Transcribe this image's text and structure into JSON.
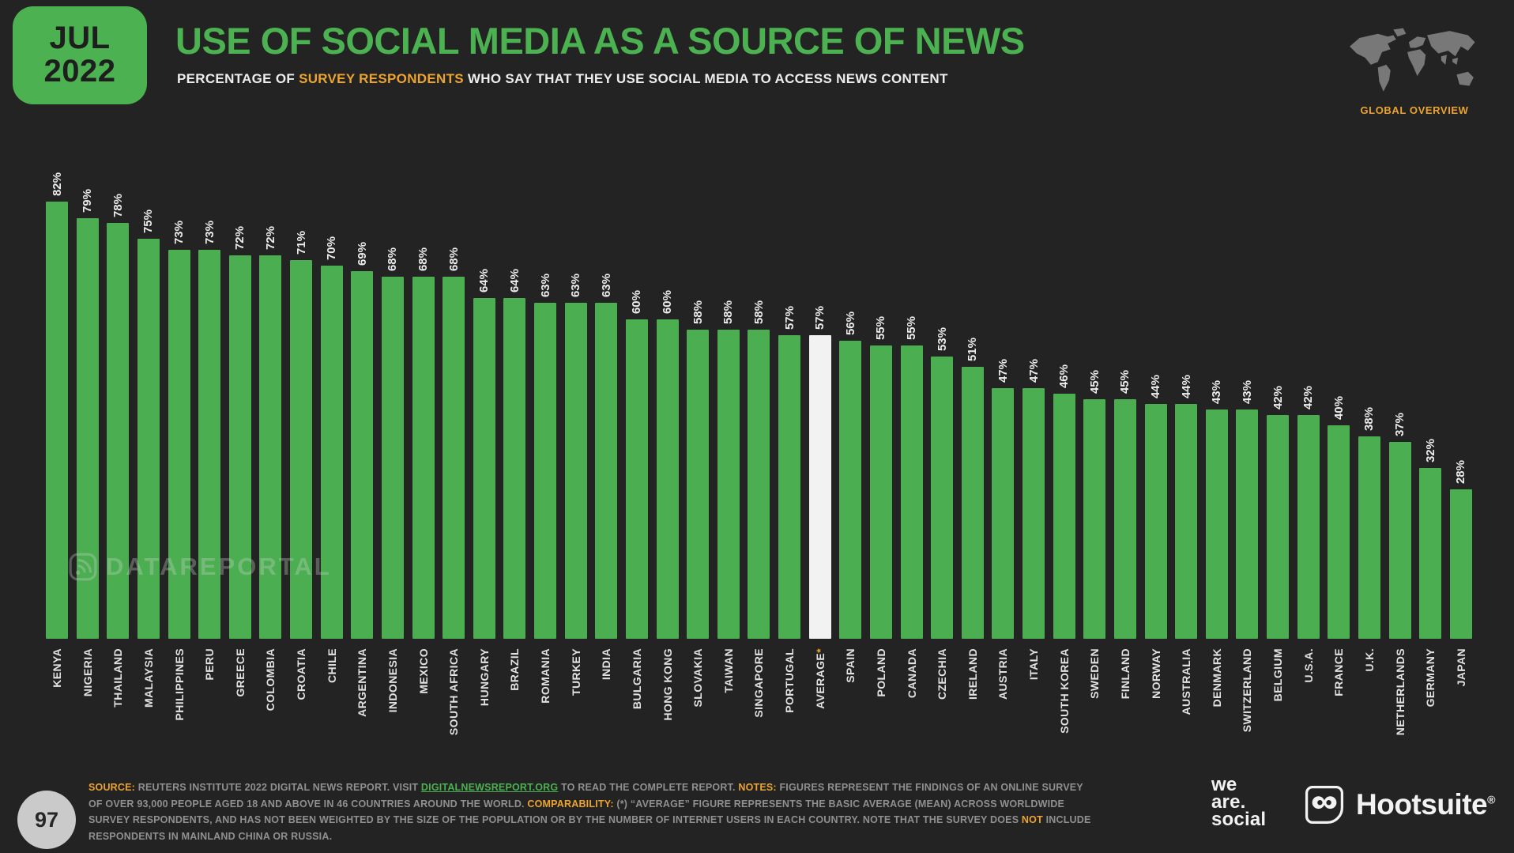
{
  "header": {
    "date_month": "JUL",
    "date_year": "2022",
    "title": "USE OF SOCIAL MEDIA AS A SOURCE OF NEWS",
    "subtitle_prefix": "PERCENTAGE OF ",
    "subtitle_highlight": "SURVEY RESPONDENTS",
    "subtitle_suffix": " WHO SAY THAT THEY USE SOCIAL MEDIA TO ACCESS NEWS CONTENT",
    "region_label": "GLOBAL OVERVIEW"
  },
  "chart_data": {
    "type": "bar",
    "title": "USE OF SOCIAL MEDIA AS A SOURCE OF NEWS",
    "unit": "%",
    "categories": [
      "KENYA",
      "NIGERIA",
      "THAILAND",
      "MALAYSIA",
      "PHILIPPINES",
      "PERU",
      "GREECE",
      "COLOMBIA",
      "CROATIA",
      "CHILE",
      "ARGENTINA",
      "INDONESIA",
      "MEXICO",
      "SOUTH AFRICA",
      "HUNGARY",
      "BRAZIL",
      "ROMANIA",
      "TURKEY",
      "INDIA",
      "BULGARIA",
      "HONG KONG",
      "SLOVAKIA",
      "TAIWAN",
      "SINGAPORE",
      "PORTUGAL",
      "AVERAGE",
      "SPAIN",
      "POLAND",
      "CANADA",
      "CZECHIA",
      "IRELAND",
      "AUSTRIA",
      "ITALY",
      "SOUTH KOREA",
      "SWEDEN",
      "FINLAND",
      "NORWAY",
      "AUSTRALIA",
      "DENMARK",
      "SWITZERLAND",
      "BELGIUM",
      "U.S.A.",
      "FRANCE",
      "U.K.",
      "NETHERLANDS",
      "GERMANY",
      "JAPAN"
    ],
    "values": [
      82,
      79,
      78,
      75,
      73,
      73,
      72,
      72,
      71,
      70,
      69,
      68,
      68,
      68,
      64,
      64,
      63,
      63,
      63,
      60,
      60,
      58,
      58,
      58,
      57,
      57,
      56,
      55,
      55,
      53,
      51,
      47,
      47,
      46,
      45,
      45,
      44,
      44,
      43,
      43,
      42,
      42,
      40,
      38,
      37,
      32,
      28
    ],
    "average_index": 25,
    "average_suffix": "*",
    "value_labels_rotated": true,
    "axis": "none",
    "ylim": [
      0,
      88
    ],
    "bar_color": "#4BAE50",
    "highlight_color": "#F2F2F2"
  },
  "watermark": {
    "text": "DATAREPORTAL"
  },
  "footer": {
    "page_number": "97",
    "note_segments": [
      {
        "text": "SOURCE:",
        "style": "accent"
      },
      {
        "text": " REUTERS INSTITUTE 2022 DIGITAL NEWS REPORT. VISIT ",
        "style": "plain"
      },
      {
        "text": "DIGITALNEWSREPORT.ORG",
        "style": "link"
      },
      {
        "text": " TO READ THE COMPLETE REPORT. ",
        "style": "plain"
      },
      {
        "text": "NOTES:",
        "style": "accent"
      },
      {
        "text": " FIGURES REPRESENT THE FINDINGS OF AN ONLINE SURVEY OF OVER 93,000 PEOPLE AGED 18 AND ABOVE IN 46 COUNTRIES AROUND THE WORLD. ",
        "style": "plain"
      },
      {
        "text": "COMPARABILITY:",
        "style": "accent"
      },
      {
        "text": " (*) “AVERAGE” FIGURE REPRESENTS THE BASIC AVERAGE (MEAN) ACROSS WORLDWIDE SURVEY RESPONDENTS, AND HAS NOT BEEN WEIGHTED BY THE SIZE OF THE POPULATION OR BY THE NUMBER OF INTERNET USERS IN EACH COUNTRY. NOTE THAT THE SURVEY DOES ",
        "style": "plain"
      },
      {
        "text": "NOT",
        "style": "accent"
      },
      {
        "text": " INCLUDE RESPONDENTS IN MAINLAND CHINA OR RUSSIA.",
        "style": "plain"
      }
    ],
    "we_are_social_lines": [
      "we",
      "are.",
      "social"
    ],
    "hootsuite_label": "Hootsuite",
    "hootsuite_reg": "®"
  },
  "colors": {
    "background": "#222322",
    "green": "#4CB151",
    "orange": "#EDA32F",
    "bar_green": "#4BAE50",
    "bar_highlight": "#F2F2F2",
    "map_gray": "#8E8E8E"
  }
}
